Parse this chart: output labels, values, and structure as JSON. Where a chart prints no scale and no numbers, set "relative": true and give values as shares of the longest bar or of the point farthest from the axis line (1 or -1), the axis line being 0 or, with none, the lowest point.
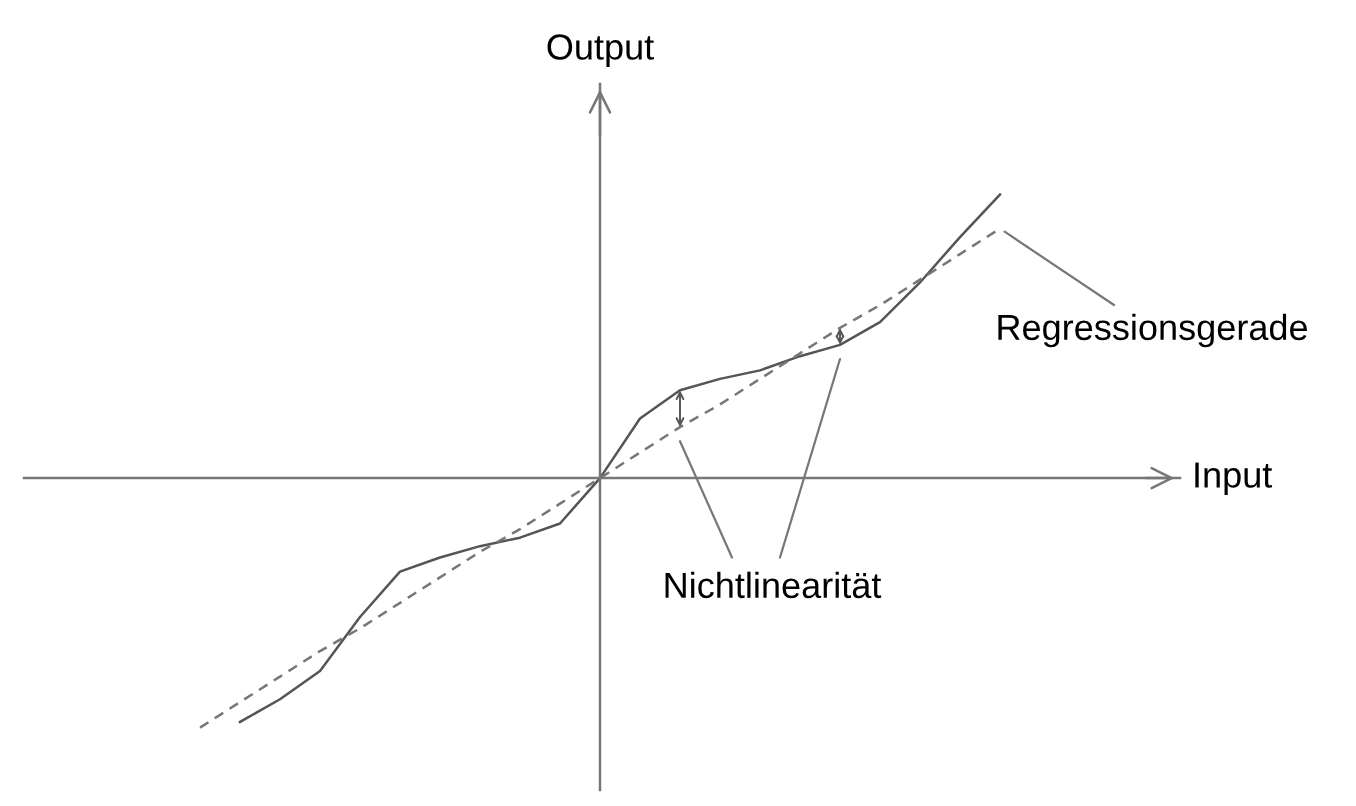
{
  "chart_data": {
    "type": "line",
    "relative": true,
    "xlabel": "Input",
    "ylabel": "Output",
    "tick_labels": false,
    "categories": [
      null,
      null,
      null,
      null,
      null,
      null,
      null,
      null,
      null,
      null,
      null,
      null,
      null,
      null,
      null,
      null,
      null,
      null,
      null,
      null,
      null
    ],
    "series": [
      {
        "color": "#555555",
        "line_style": "solid",
        "values": [
          null,
          -0.86,
          -0.78,
          -0.68,
          -0.49,
          -0.33,
          -0.28,
          -0.24,
          -0.21,
          -0.16,
          0,
          0.21,
          0.31,
          0.35,
          0.38,
          0.43,
          0.47,
          0.55,
          0.69,
          0.85,
          1.0
        ]
      },
      {
        "color": "#777777",
        "line_style": "dashed",
        "values": [
          -0.88,
          -0.79,
          -0.7,
          -0.61,
          -0.53,
          -0.44,
          -0.35,
          -0.26,
          -0.18,
          -0.09,
          0,
          0.09,
          0.18,
          0.26,
          0.35,
          0.44,
          0.53,
          0.61,
          0.7,
          0.79,
          0.88
        ]
      }
    ],
    "annotations": [
      "Regressionsgerade",
      "Nichtlinearität"
    ]
  }
}
